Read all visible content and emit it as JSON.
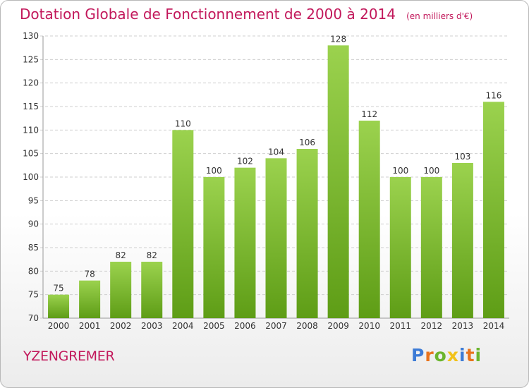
{
  "title": "Dotation Globale de Fonctionnement de 2000 à 2014",
  "unit_note": "(en milliers d'€)",
  "commune": "YZENGREMER",
  "logo": {
    "text": "Proxiti",
    "letters": [
      {
        "ch": "P",
        "color": "#3c7bd6"
      },
      {
        "ch": "r",
        "color": "#e8731c"
      },
      {
        "ch": "o",
        "color": "#6bb52e"
      },
      {
        "ch": "x",
        "color": "#f2c21a"
      },
      {
        "ch": "i",
        "color": "#3c7bd6"
      },
      {
        "ch": "t",
        "color": "#e8731c"
      },
      {
        "ch": "i",
        "color": "#6bb52e"
      }
    ]
  },
  "colors": {
    "title": "#c2185b",
    "bar_top": "#9bd24e",
    "bar_bottom": "#5e9d16",
    "grid": "#cfcfcf",
    "axis_text": "#333333"
  },
  "chart_data": {
    "type": "bar",
    "categories": [
      "2000",
      "2001",
      "2002",
      "2003",
      "2004",
      "2005",
      "2006",
      "2007",
      "2008",
      "2009",
      "2010",
      "2011",
      "2012",
      "2013",
      "2014"
    ],
    "values": [
      75,
      78,
      82,
      82,
      110,
      100,
      102,
      104,
      106,
      128,
      112,
      100,
      100,
      103,
      116
    ],
    "ylim": [
      70,
      130
    ],
    "yticks": [
      70,
      75,
      80,
      85,
      90,
      95,
      100,
      105,
      110,
      115,
      120,
      125,
      130
    ],
    "grid": true,
    "data_labels": true
  }
}
